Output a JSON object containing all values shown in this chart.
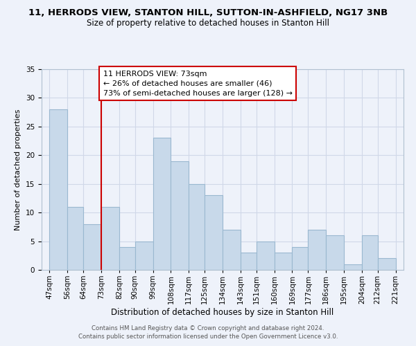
{
  "title_line1": "11, HERRODS VIEW, STANTON HILL, SUTTON-IN-ASHFIELD, NG17 3NB",
  "title_line2": "Size of property relative to detached houses in Stanton Hill",
  "xlabel": "Distribution of detached houses by size in Stanton Hill",
  "ylabel": "Number of detached properties",
  "footer_line1": "Contains HM Land Registry data © Crown copyright and database right 2024.",
  "footer_line2": "Contains public sector information licensed under the Open Government Licence v3.0.",
  "annotation_line1": "11 HERRODS VIEW: 73sqm",
  "annotation_line2": "← 26% of detached houses are smaller (46)",
  "annotation_line3": "73% of semi-detached houses are larger (128) →",
  "bar_left_edges": [
    47,
    56,
    64,
    73,
    82,
    90,
    99,
    108,
    117,
    125,
    134,
    143,
    151,
    160,
    169,
    177,
    186,
    195,
    204,
    212
  ],
  "bar_heights": [
    28,
    11,
    8,
    11,
    4,
    5,
    23,
    19,
    15,
    13,
    7,
    3,
    5,
    3,
    4,
    7,
    6,
    1,
    6,
    2
  ],
  "bar_widths": [
    9,
    8,
    9,
    9,
    8,
    9,
    9,
    9,
    8,
    9,
    9,
    8,
    9,
    9,
    8,
    9,
    9,
    9,
    8,
    9
  ],
  "xlabels": [
    "47sqm",
    "56sqm",
    "64sqm",
    "73sqm",
    "82sqm",
    "90sqm",
    "99sqm",
    "108sqm",
    "117sqm",
    "125sqm",
    "134sqm",
    "143sqm",
    "151sqm",
    "160sqm",
    "169sqm",
    "177sqm",
    "186sqm",
    "195sqm",
    "204sqm",
    "212sqm",
    "221sqm"
  ],
  "xtick_positions": [
    47,
    56,
    64,
    73,
    82,
    90,
    99,
    108,
    117,
    125,
    134,
    143,
    151,
    160,
    169,
    177,
    186,
    195,
    204,
    212,
    221
  ],
  "bar_color": "#c8d9ea",
  "bar_edge_color": "#9ab8d0",
  "vline_x": 73,
  "vline_color": "#cc0000",
  "annotation_box_edge_color": "#cc0000",
  "ylim": [
    0,
    35
  ],
  "xlim": [
    43,
    225
  ],
  "yticks": [
    0,
    5,
    10,
    15,
    20,
    25,
    30,
    35
  ],
  "grid_color": "#d0d8e8",
  "background_color": "#eef2fa",
  "title_fontsize": 9.5,
  "subtitle_fontsize": 8.5,
  "ylabel_fontsize": 8,
  "xlabel_fontsize": 8.5,
  "footer_fontsize": 6.2,
  "tick_fontsize": 7.5,
  "annotation_fontsize": 8
}
